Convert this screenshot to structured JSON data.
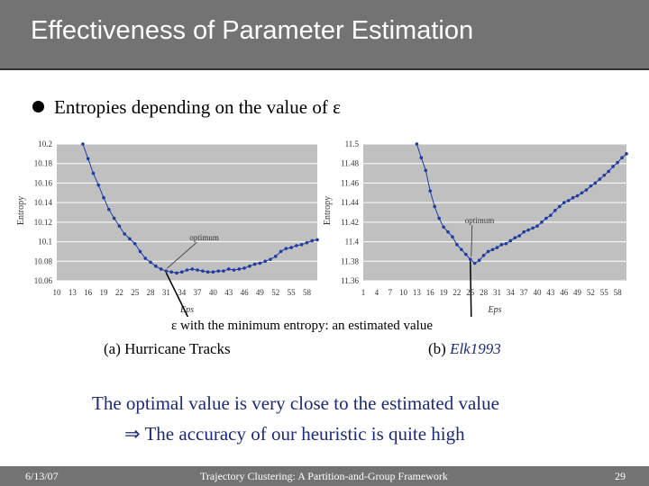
{
  "slide": {
    "title": "Effectiveness of Parameter Estimation",
    "bullet": "Entropies depending on the value of ε",
    "note": "ε with the minimum entropy: an estimated value",
    "caption_a": "(a) Hurricane Tracks",
    "caption_b_prefix": "(b) ",
    "caption_b_name": "Elk1993",
    "conclusion_line1": "The optimal value is very close to the estimated value",
    "conclusion_line2_arrow": "⇒",
    "conclusion_line2": "The accuracy of our heuristic is quite high",
    "footer_date": "6/13/07",
    "footer_center": "Trajectory Clustering: A Partition-and-Group Framework",
    "footer_page": "29"
  },
  "colors": {
    "title_bar": "#737373",
    "series": "#1f3aa0",
    "text_blue": "#1b2a7a",
    "plot_bg": "#c0c0c0"
  },
  "chart_data": [
    {
      "type": "line",
      "xlabel": "Eps",
      "ylabel": "Entropy",
      "xlim": [
        10,
        60
      ],
      "ylim": [
        10.06,
        10.2
      ],
      "x_ticks": [
        10,
        13,
        16,
        19,
        22,
        25,
        28,
        31,
        34,
        37,
        40,
        43,
        46,
        49,
        52,
        55,
        58
      ],
      "y_ticks": [
        "10.06",
        "10.08",
        "10.1",
        "10.12",
        "10.14",
        "10.16",
        "10.18",
        "10.2"
      ],
      "annotation": {
        "text": "optimum",
        "x": 31
      },
      "series": [
        {
          "x": [
            15,
            16,
            17,
            18,
            19,
            20,
            21,
            22,
            23,
            24,
            25,
            26,
            27,
            28,
            29,
            30,
            31,
            32,
            33,
            34,
            35,
            36,
            37,
            38,
            39,
            40,
            41,
            42,
            43,
            44,
            45,
            46,
            47,
            48,
            49,
            50,
            51,
            52,
            53,
            54,
            55,
            56,
            57,
            58,
            59,
            60
          ],
          "y": [
            10.2,
            10.185,
            10.17,
            10.158,
            10.145,
            10.133,
            10.124,
            10.116,
            10.108,
            10.103,
            10.098,
            10.09,
            10.083,
            10.079,
            10.075,
            10.072,
            10.07,
            10.069,
            10.068,
            10.069,
            10.071,
            10.072,
            10.071,
            10.07,
            10.069,
            10.069,
            10.07,
            10.07,
            10.072,
            10.071,
            10.072,
            10.073,
            10.075,
            10.077,
            10.078,
            10.08,
            10.082,
            10.085,
            10.09,
            10.093,
            10.094,
            10.096,
            10.097,
            10.099,
            10.101,
            10.102
          ]
        }
      ]
    },
    {
      "type": "line",
      "xlabel": "Eps",
      "ylabel": "Entropy",
      "xlim": [
        1,
        60
      ],
      "ylim": [
        11.36,
        11.5
      ],
      "x_ticks": [
        1,
        4,
        7,
        10,
        13,
        16,
        19,
        22,
        25,
        28,
        31,
        34,
        37,
        40,
        43,
        46,
        49,
        52,
        55,
        58
      ],
      "y_ticks": [
        "11.36",
        "11.38",
        "11.4",
        "11.42",
        "11.44",
        "11.46",
        "11.48",
        "11.5"
      ],
      "annotation": {
        "text": "optimum",
        "x": 25
      },
      "series": [
        {
          "x": [
            13,
            14,
            15,
            16,
            17,
            18,
            19,
            20,
            21,
            22,
            23,
            24,
            25,
            26,
            27,
            28,
            29,
            30,
            31,
            32,
            33,
            34,
            35,
            36,
            37,
            38,
            39,
            40,
            41,
            42,
            43,
            44,
            45,
            46,
            47,
            48,
            49,
            50,
            51,
            52,
            53,
            54,
            55,
            56,
            57,
            58,
            59,
            60
          ],
          "y": [
            11.5,
            11.486,
            11.473,
            11.452,
            11.436,
            11.424,
            11.415,
            11.41,
            11.405,
            11.397,
            11.392,
            11.387,
            11.382,
            11.378,
            11.381,
            11.386,
            11.39,
            11.392,
            11.394,
            11.397,
            11.398,
            11.401,
            11.404,
            11.406,
            11.41,
            11.412,
            11.414,
            11.416,
            11.42,
            11.424,
            11.427,
            11.432,
            11.436,
            11.44,
            11.442,
            11.445,
            11.447,
            11.45,
            11.453,
            11.457,
            11.46,
            11.464,
            11.468,
            11.472,
            11.477,
            11.481,
            11.486,
            11.49
          ]
        }
      ]
    }
  ]
}
